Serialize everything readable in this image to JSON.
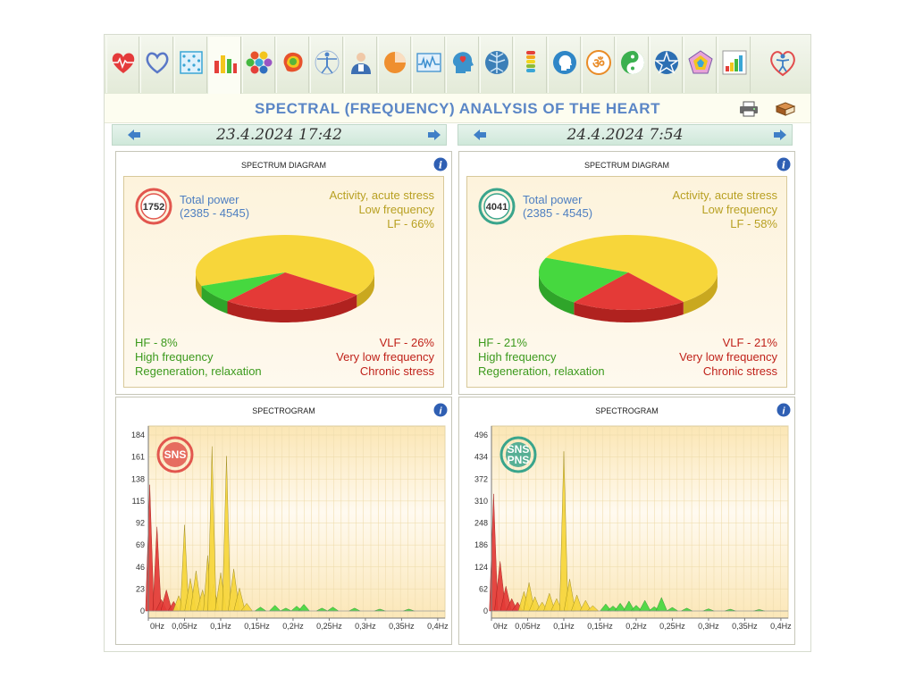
{
  "toolbar": {
    "tabs": [
      {
        "name": "heart-rate-icon",
        "color": "#e43b3b"
      },
      {
        "name": "heart-outline-icon",
        "color": "#5a78c7"
      },
      {
        "name": "grid-chart-icon",
        "color": "#3aa6d6"
      },
      {
        "name": "bar-chart-icon",
        "color": "#f3c51d"
      },
      {
        "name": "hexagons-icon",
        "color": "#e7522c"
      },
      {
        "name": "brain-map-icon",
        "color": "#57b53a"
      },
      {
        "name": "vitruvian-man-icon",
        "color": "#4f84c9"
      },
      {
        "name": "doctor-icon",
        "color": "#3d6fb3"
      },
      {
        "name": "pie-chart-icon",
        "color": "#ef8f2f"
      },
      {
        "name": "waveform-icon",
        "color": "#3d8fcf"
      },
      {
        "name": "head-heart-icon",
        "color": "#3c93cc"
      },
      {
        "name": "nerve-tree-icon",
        "color": "#3c7fb8"
      },
      {
        "name": "spine-icon",
        "color": "#8dbb35"
      },
      {
        "name": "head-profile-icon",
        "color": "#2f86c7"
      },
      {
        "name": "om-icon",
        "color": "#e98b26"
      },
      {
        "name": "yin-yang-icon",
        "color": "#3bb04f"
      },
      {
        "name": "pentagram-icon",
        "color": "#2c6fb3"
      },
      {
        "name": "pentagon-icon",
        "color": "#c58ab8"
      },
      {
        "name": "bar-growth-icon",
        "color": "#e54a3a"
      }
    ],
    "active_index": 3,
    "logo": "heart-person-logo-icon"
  },
  "header": {
    "title": "SPECTRAL (FREQUENCY) ANALYSIS OF THE HEART",
    "print_icon": "printer-icon",
    "book_icon": "book-icon"
  },
  "panels": [
    {
      "date": "23.4.2024 17:42",
      "spectrum": {
        "title": "SPECTRUM DIAGRAM",
        "total_power_value": "1752",
        "total_power_label": "Total power",
        "total_power_range": "(2385 - 4545)",
        "badge_color": "#e2564e",
        "lf_line1": "Activity, acute stress",
        "lf_line2": "Low frequency",
        "lf_line3": "LF - 66%",
        "hf_line1": "HF - 8%",
        "hf_line2": "High frequency",
        "hf_line3": "Regeneration, relaxation",
        "vlf_line1": "VLF - 26%",
        "vlf_line2": "Very low frequency",
        "vlf_line3": "Chronic stress"
      },
      "spectrogram": {
        "title": "SPECTROGRAM",
        "badge_lines": [
          "SNS"
        ],
        "badge_color": "#e2564e"
      }
    },
    {
      "date": "24.4.2024 7:54",
      "spectrum": {
        "title": "SPECTRUM DIAGRAM",
        "total_power_value": "4041",
        "total_power_label": "Total power",
        "total_power_range": "(2385 - 4545)",
        "badge_color": "#3aa58c",
        "lf_line1": "Activity, acute stress",
        "lf_line2": "Low frequency",
        "lf_line3": "LF - 58%",
        "hf_line1": "HF - 21%",
        "hf_line2": "High frequency",
        "hf_line3": "Regeneration, relaxation",
        "vlf_line1": "VLF - 21%",
        "vlf_line2": "Very low frequency",
        "vlf_line3": "Chronic stress"
      },
      "spectrogram": {
        "title": "SPECTROGRAM",
        "badge_lines": [
          "SNS",
          "PNS"
        ],
        "badge_color": "#3aa58c"
      }
    }
  ],
  "colors": {
    "lf": "#f7d63a",
    "hf": "#46d83f",
    "vlf": "#e43a37",
    "lf_dark": "#c9a81f",
    "hf_dark": "#2fa52a",
    "vlf_dark": "#b0221f"
  },
  "chart_data": [
    {
      "type": "pie",
      "categories": [
        "LF",
        "HF",
        "VLF"
      ],
      "values": [
        66,
        8,
        26
      ]
    },
    {
      "type": "pie",
      "categories": [
        "LF",
        "HF",
        "VLF"
      ],
      "values": [
        58,
        21,
        21
      ]
    },
    {
      "type": "area",
      "xlabel": "",
      "ylabel": "",
      "x_ticks": [
        "0Hz",
        "0,05Hz",
        "0,1Hz",
        "0,15Hz",
        "0,2Hz",
        "0,25Hz",
        "0,3Hz",
        "0,35Hz",
        "0,4Hz"
      ],
      "y_ticks": [
        0,
        23,
        46,
        69,
        92,
        115,
        138,
        161,
        184
      ],
      "xlim": [
        0,
        0.41
      ],
      "ylim": [
        0,
        184
      ],
      "peaks": [
        {
          "x": 0.002,
          "y": 132,
          "band": "vlf"
        },
        {
          "x": 0.012,
          "y": 88,
          "band": "vlf"
        },
        {
          "x": 0.018,
          "y": 12,
          "band": "vlf"
        },
        {
          "x": 0.025,
          "y": 22,
          "band": "vlf"
        },
        {
          "x": 0.035,
          "y": 10,
          "band": "vlf"
        },
        {
          "x": 0.042,
          "y": 16,
          "band": "lf"
        },
        {
          "x": 0.05,
          "y": 90,
          "band": "lf"
        },
        {
          "x": 0.058,
          "y": 34,
          "band": "lf"
        },
        {
          "x": 0.066,
          "y": 42,
          "band": "lf"
        },
        {
          "x": 0.075,
          "y": 22,
          "band": "lf"
        },
        {
          "x": 0.082,
          "y": 58,
          "band": "lf"
        },
        {
          "x": 0.09,
          "y": 28,
          "band": "lf"
        },
        {
          "x": 0.088,
          "y": 172,
          "band": "lf"
        },
        {
          "x": 0.1,
          "y": 40,
          "band": "lf"
        },
        {
          "x": 0.108,
          "y": 162,
          "band": "lf"
        },
        {
          "x": 0.118,
          "y": 44,
          "band": "lf"
        },
        {
          "x": 0.126,
          "y": 24,
          "band": "lf"
        },
        {
          "x": 0.136,
          "y": 8,
          "band": "lf"
        },
        {
          "x": 0.155,
          "y": 4,
          "band": "hf"
        },
        {
          "x": 0.175,
          "y": 6,
          "band": "hf"
        },
        {
          "x": 0.19,
          "y": 3,
          "band": "hf"
        },
        {
          "x": 0.205,
          "y": 5,
          "band": "hf"
        },
        {
          "x": 0.215,
          "y": 7,
          "band": "hf"
        },
        {
          "x": 0.24,
          "y": 3,
          "band": "hf"
        },
        {
          "x": 0.255,
          "y": 4,
          "band": "hf"
        },
        {
          "x": 0.285,
          "y": 3,
          "band": "hf"
        },
        {
          "x": 0.32,
          "y": 2,
          "band": "hf"
        },
        {
          "x": 0.36,
          "y": 2,
          "band": "hf"
        }
      ]
    },
    {
      "type": "area",
      "xlabel": "",
      "ylabel": "",
      "x_ticks": [
        "0Hz",
        "0,05Hz",
        "0,1Hz",
        "0,15Hz",
        "0,2Hz",
        "0,25Hz",
        "0,3Hz",
        "0,35Hz",
        "0,4Hz"
      ],
      "y_ticks": [
        0,
        62,
        124,
        186,
        248,
        310,
        372,
        434,
        496
      ],
      "xlim": [
        0,
        0.41
      ],
      "ylim": [
        0,
        496
      ],
      "peaks": [
        {
          "x": 0.003,
          "y": 330,
          "band": "vlf"
        },
        {
          "x": 0.012,
          "y": 140,
          "band": "vlf"
        },
        {
          "x": 0.02,
          "y": 70,
          "band": "vlf"
        },
        {
          "x": 0.028,
          "y": 35,
          "band": "vlf"
        },
        {
          "x": 0.036,
          "y": 25,
          "band": "vlf"
        },
        {
          "x": 0.045,
          "y": 55,
          "band": "lf"
        },
        {
          "x": 0.052,
          "y": 80,
          "band": "lf"
        },
        {
          "x": 0.06,
          "y": 40,
          "band": "lf"
        },
        {
          "x": 0.07,
          "y": 25,
          "band": "lf"
        },
        {
          "x": 0.08,
          "y": 50,
          "band": "lf"
        },
        {
          "x": 0.09,
          "y": 35,
          "band": "lf"
        },
        {
          "x": 0.1,
          "y": 450,
          "band": "lf"
        },
        {
          "x": 0.108,
          "y": 90,
          "band": "lf"
        },
        {
          "x": 0.118,
          "y": 45,
          "band": "lf"
        },
        {
          "x": 0.13,
          "y": 30,
          "band": "lf"
        },
        {
          "x": 0.14,
          "y": 15,
          "band": "lf"
        },
        {
          "x": 0.158,
          "y": 20,
          "band": "hf"
        },
        {
          "x": 0.168,
          "y": 14,
          "band": "hf"
        },
        {
          "x": 0.178,
          "y": 22,
          "band": "hf"
        },
        {
          "x": 0.19,
          "y": 28,
          "band": "hf"
        },
        {
          "x": 0.2,
          "y": 16,
          "band": "hf"
        },
        {
          "x": 0.212,
          "y": 30,
          "band": "hf"
        },
        {
          "x": 0.225,
          "y": 12,
          "band": "hf"
        },
        {
          "x": 0.235,
          "y": 38,
          "band": "hf"
        },
        {
          "x": 0.25,
          "y": 10,
          "band": "hf"
        },
        {
          "x": 0.27,
          "y": 8,
          "band": "hf"
        },
        {
          "x": 0.3,
          "y": 6,
          "band": "hf"
        },
        {
          "x": 0.33,
          "y": 5,
          "band": "hf"
        },
        {
          "x": 0.37,
          "y": 4,
          "band": "hf"
        }
      ]
    }
  ]
}
